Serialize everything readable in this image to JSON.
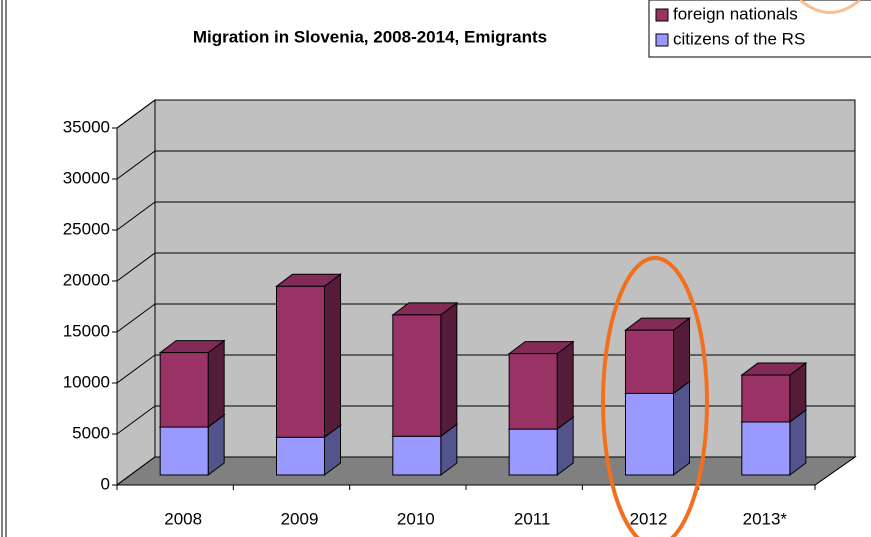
{
  "chart_data": {
    "type": "bar",
    "stacked": true,
    "title": "Migration in Slovenia, 2008-2014, Emigrants",
    "categories": [
      "2008",
      "2009",
      "2010",
      "2011",
      "2012",
      "2013*"
    ],
    "series": [
      {
        "name": "citizens of the RS",
        "color": "#9999ff",
        "values": [
          4700,
          3700,
          3800,
          4500,
          8000,
          5200
        ]
      },
      {
        "name": "foreign nationals",
        "color": "#993366",
        "values": [
          7300,
          14800,
          11900,
          7400,
          6200,
          4600
        ]
      }
    ],
    "ylim": [
      0,
      35000
    ],
    "yticks": [
      0,
      5000,
      10000,
      15000,
      20000,
      25000,
      30000,
      35000
    ],
    "grid": true,
    "legend": "upper right"
  }
}
